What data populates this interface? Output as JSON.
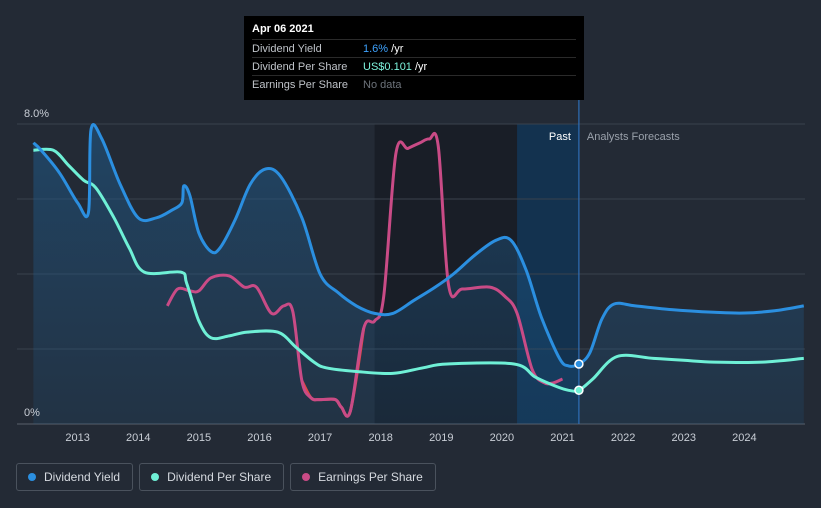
{
  "tooltip": {
    "date": "Apr 06 2021",
    "rows": [
      {
        "label": "Dividend Yield",
        "value": "1.6%",
        "suffix": " /yr"
      },
      {
        "label": "Dividend Per Share",
        "value": "US$0.101",
        "suffix": " /yr"
      },
      {
        "label": "Earnings Per Share",
        "value": "No data",
        "suffix": ""
      }
    ]
  },
  "colors": {
    "background": "#232a35",
    "dividend_yield": "#2b8fe0",
    "dividend_per_share": "#6ff0d6",
    "earnings_positive": "#c94b86",
    "earnings_negative": "#e04848",
    "forecast_band": "#13324f"
  },
  "legend": [
    {
      "label": "Dividend Yield",
      "color": "#2b8fe0"
    },
    {
      "label": "Dividend Per Share",
      "color": "#6ff0d6"
    },
    {
      "label": "Earnings Per Share",
      "color": "#c94b86"
    }
  ],
  "chart_data": {
    "type": "line",
    "title": "",
    "y_top_label": "8.0%",
    "y_bottom_label": "0%",
    "ylim": [
      0,
      8.0
    ],
    "xlim": [
      2012.0,
      2025.0
    ],
    "x_ticks": [
      "2013",
      "2014",
      "2015",
      "2016",
      "2017",
      "2018",
      "2019",
      "2020",
      "2021",
      "2022",
      "2023",
      "2024"
    ],
    "past_label": "Past",
    "forecast_label": "Analysts Forecasts",
    "current_date": 2021.27,
    "forecast_shade_start": 2020.25,
    "dark_region": [
      2017.9,
      2020.25
    ],
    "series": [
      {
        "name": "Dividend Yield",
        "unit": "%",
        "points": [
          [
            2012.27,
            7.5
          ],
          [
            2012.4,
            7.3
          ],
          [
            2012.7,
            6.7
          ],
          [
            2013.0,
            5.9
          ],
          [
            2013.18,
            5.65
          ],
          [
            2013.22,
            7.85
          ],
          [
            2013.4,
            7.6
          ],
          [
            2013.7,
            6.4
          ],
          [
            2014.0,
            5.5
          ],
          [
            2014.3,
            5.5
          ],
          [
            2014.55,
            5.7
          ],
          [
            2014.72,
            5.9
          ],
          [
            2014.75,
            6.35
          ],
          [
            2014.85,
            6.1
          ],
          [
            2015.0,
            5.1
          ],
          [
            2015.2,
            4.6
          ],
          [
            2015.35,
            4.7
          ],
          [
            2015.6,
            5.45
          ],
          [
            2015.85,
            6.4
          ],
          [
            2016.1,
            6.8
          ],
          [
            2016.35,
            6.6
          ],
          [
            2016.7,
            5.5
          ],
          [
            2017.0,
            4.0
          ],
          [
            2017.3,
            3.5
          ],
          [
            2017.6,
            3.15
          ],
          [
            2017.9,
            2.95
          ],
          [
            2018.2,
            2.95
          ],
          [
            2018.55,
            3.3
          ],
          [
            2018.9,
            3.65
          ],
          [
            2019.2,
            4.0
          ],
          [
            2019.55,
            4.5
          ],
          [
            2019.9,
            4.9
          ],
          [
            2020.15,
            4.9
          ],
          [
            2020.4,
            4.1
          ],
          [
            2020.65,
            2.85
          ],
          [
            2020.95,
            1.75
          ],
          [
            2021.1,
            1.55
          ],
          [
            2021.27,
            1.6
          ],
          [
            2021.45,
            1.9
          ],
          [
            2021.65,
            2.8
          ],
          [
            2021.85,
            3.2
          ],
          [
            2022.2,
            3.15
          ],
          [
            2022.8,
            3.05
          ],
          [
            2023.5,
            2.98
          ],
          [
            2024.0,
            2.96
          ],
          [
            2024.5,
            3.02
          ],
          [
            2024.98,
            3.15
          ]
        ]
      },
      {
        "name": "Dividend Per Share",
        "unit": "US$",
        "points": [
          [
            2012.27,
            7.3
          ],
          [
            2012.6,
            7.3
          ],
          [
            2012.85,
            6.9
          ],
          [
            2013.1,
            6.5
          ],
          [
            2013.3,
            6.3
          ],
          [
            2013.6,
            5.5
          ],
          [
            2013.85,
            4.7
          ],
          [
            2014.1,
            4.05
          ],
          [
            2014.7,
            4.05
          ],
          [
            2014.8,
            3.75
          ],
          [
            2015.0,
            2.75
          ],
          [
            2015.2,
            2.3
          ],
          [
            2015.5,
            2.35
          ],
          [
            2015.8,
            2.45
          ],
          [
            2016.3,
            2.45
          ],
          [
            2016.6,
            2.05
          ],
          [
            2016.9,
            1.65
          ],
          [
            2017.1,
            1.5
          ],
          [
            2017.6,
            1.4
          ],
          [
            2018.2,
            1.35
          ],
          [
            2018.7,
            1.5
          ],
          [
            2019.1,
            1.6
          ],
          [
            2020.2,
            1.6
          ],
          [
            2020.55,
            1.25
          ],
          [
            2020.9,
            1.0
          ],
          [
            2021.1,
            0.9
          ],
          [
            2021.27,
            0.9
          ],
          [
            2021.5,
            1.2
          ],
          [
            2021.9,
            1.8
          ],
          [
            2022.5,
            1.75
          ],
          [
            2023.0,
            1.7
          ],
          [
            2023.5,
            1.65
          ],
          [
            2024.3,
            1.65
          ],
          [
            2024.98,
            1.75
          ]
        ]
      },
      {
        "name": "Earnings Per Share",
        "unit": "US$",
        "points": [
          [
            2014.48,
            3.15
          ],
          [
            2014.65,
            3.6
          ],
          [
            2014.85,
            3.55
          ],
          [
            2015.0,
            3.55
          ],
          [
            2015.2,
            3.9
          ],
          [
            2015.5,
            3.95
          ],
          [
            2015.75,
            3.65
          ],
          [
            2015.95,
            3.65
          ],
          [
            2016.2,
            2.95
          ],
          [
            2016.4,
            3.15
          ],
          [
            2016.55,
            3.0
          ],
          [
            2016.7,
            1.15
          ],
          [
            2016.85,
            0.7
          ],
          [
            2017.0,
            0.65
          ],
          [
            2017.25,
            0.65
          ],
          [
            2017.35,
            0.45
          ],
          [
            2017.5,
            0.35
          ],
          [
            2017.72,
            2.55
          ],
          [
            2017.9,
            2.75
          ],
          [
            2018.05,
            3.4
          ],
          [
            2018.25,
            7.2
          ],
          [
            2018.45,
            7.35
          ],
          [
            2018.65,
            7.5
          ],
          [
            2018.8,
            7.6
          ],
          [
            2018.95,
            7.4
          ],
          [
            2019.12,
            3.7
          ],
          [
            2019.35,
            3.6
          ],
          [
            2019.8,
            3.65
          ],
          [
            2020.05,
            3.4
          ],
          [
            2020.25,
            2.95
          ],
          [
            2020.5,
            1.45
          ],
          [
            2020.7,
            1.1
          ],
          [
            2020.85,
            1.1
          ],
          [
            2021.0,
            1.2
          ]
        ]
      }
    ]
  }
}
